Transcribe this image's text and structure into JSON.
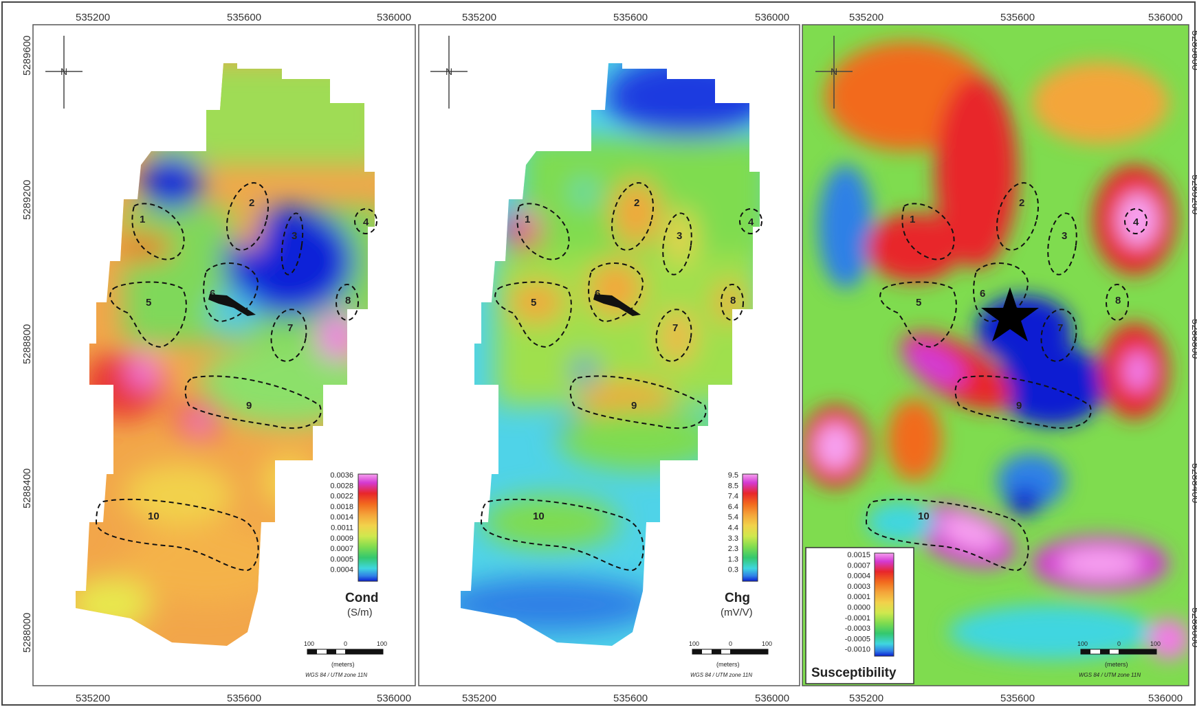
{
  "axes": {
    "x_ticks": [
      "535200",
      "535600",
      "536000"
    ],
    "y_ticks": [
      "5289600",
      "5289200",
      "5288800",
      "5288400",
      "5288000"
    ]
  },
  "north_label": "N",
  "zones": [
    "1",
    "2",
    "3",
    "4",
    "5",
    "6",
    "7",
    "8",
    "9",
    "10"
  ],
  "panels": [
    {
      "id": "cond",
      "legend_title": "Cond",
      "legend_unit": "(S/m)",
      "legend_values": [
        "0.0036",
        "0.0028",
        "0.0022",
        "0.0018",
        "0.0014",
        "0.0011",
        "0.0009",
        "0.0007",
        "0.0005",
        "0.0004"
      ],
      "scale_labels": [
        "100",
        "0",
        "100"
      ],
      "scale_unit": "(meters)",
      "projection": "WGS 84 / UTM zone 11N"
    },
    {
      "id": "chg",
      "legend_title": "Chg",
      "legend_unit": "(mV/V)",
      "legend_values": [
        "9.5",
        "8.5",
        "7.4",
        "6.4",
        "5.4",
        "4.4",
        "3.3",
        "2.3",
        "1.3",
        "0.3"
      ],
      "scale_labels": [
        "100",
        "0",
        "100"
      ],
      "scale_unit": "(meters)",
      "projection": "WGS 84 / UTM zone 11N"
    },
    {
      "id": "susc",
      "legend_title": "Susceptibility",
      "legend_unit": "",
      "legend_values": [
        "0.0015",
        "0.0007",
        "0.0004",
        "0.0003",
        "0.0001",
        "0.0000",
        "-0.0001",
        "-0.0003",
        "-0.0005",
        "-0.0010"
      ],
      "scale_labels": [
        "100",
        "0",
        "100"
      ],
      "scale_unit": "(meters)",
      "projection": "WGS 84 / UTM zone 11N"
    }
  ],
  "colors": {
    "ramp": [
      "#f7a0f0",
      "#d43ad2",
      "#e8262a",
      "#f26a1e",
      "#f4a53a",
      "#f2d24b",
      "#cfe84e",
      "#7fdc4f",
      "#34c86e",
      "#3fd6e0",
      "#2f80e6",
      "#0a1fd2"
    ]
  }
}
